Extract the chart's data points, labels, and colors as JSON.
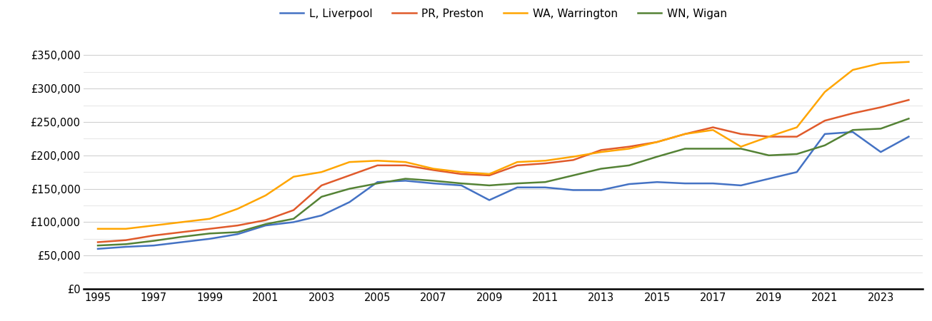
{
  "years": [
    1995,
    1996,
    1997,
    1998,
    1999,
    2000,
    2001,
    2002,
    2003,
    2004,
    2005,
    2006,
    2007,
    2008,
    2009,
    2010,
    2011,
    2012,
    2013,
    2014,
    2015,
    2016,
    2017,
    2018,
    2019,
    2020,
    2021,
    2022,
    2023,
    2024
  ],
  "liverpool": [
    60000,
    63000,
    65000,
    70000,
    75000,
    82000,
    95000,
    100000,
    110000,
    130000,
    160000,
    162000,
    158000,
    155000,
    133000,
    152000,
    152000,
    148000,
    148000,
    157000,
    160000,
    158000,
    158000,
    155000,
    165000,
    175000,
    232000,
    235000,
    205000,
    228000
  ],
  "preston": [
    70000,
    73000,
    80000,
    85000,
    90000,
    95000,
    103000,
    118000,
    155000,
    170000,
    185000,
    185000,
    178000,
    172000,
    170000,
    185000,
    188000,
    193000,
    208000,
    213000,
    220000,
    232000,
    242000,
    232000,
    228000,
    228000,
    252000,
    263000,
    272000,
    283000
  ],
  "warrington": [
    90000,
    90000,
    95000,
    100000,
    105000,
    120000,
    140000,
    168000,
    175000,
    190000,
    192000,
    190000,
    180000,
    175000,
    172000,
    190000,
    192000,
    198000,
    205000,
    210000,
    220000,
    232000,
    238000,
    213000,
    228000,
    242000,
    295000,
    328000,
    338000,
    340000
  ],
  "wigan": [
    65000,
    67000,
    72000,
    78000,
    83000,
    85000,
    97000,
    105000,
    138000,
    150000,
    158000,
    165000,
    162000,
    158000,
    155000,
    158000,
    160000,
    170000,
    180000,
    185000,
    198000,
    210000,
    210000,
    210000,
    200000,
    202000,
    215000,
    238000,
    240000,
    255000
  ],
  "liverpool_color": "#4472C4",
  "preston_color": "#E05A2B",
  "warrington_color": "#FFA500",
  "wigan_color": "#548235",
  "legend_labels": [
    "L, Liverpool",
    "PR, Preston",
    "WA, Warrington",
    "WN, Wigan"
  ],
  "ylim": [
    0,
    375000
  ],
  "yticks": [
    0,
    50000,
    100000,
    150000,
    200000,
    250000,
    300000,
    350000
  ],
  "minor_yticks": [
    25000,
    75000,
    125000,
    175000,
    225000,
    275000,
    325000
  ],
  "xticks": [
    1995,
    1997,
    1999,
    2001,
    2003,
    2005,
    2007,
    2009,
    2011,
    2013,
    2015,
    2017,
    2019,
    2021,
    2023
  ],
  "background_color": "#ffffff",
  "grid_color": "#d0d0d0",
  "minor_grid_color": "#e8e8e8",
  "linewidth": 1.8,
  "tick_fontsize": 10.5,
  "legend_fontsize": 11
}
